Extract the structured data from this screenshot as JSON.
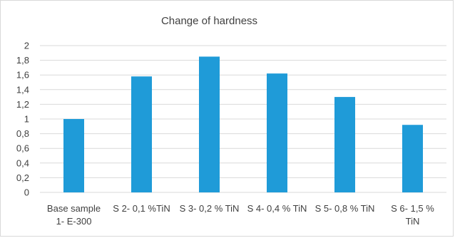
{
  "chart_data": {
    "type": "bar",
    "title": "Change of hardness",
    "xlabel": "",
    "ylabel": "",
    "categories": [
      [
        "Base sample",
        "1- E-300"
      ],
      [
        "S 2- 0,1 %TiN"
      ],
      [
        "S 3- 0,2 % TiN"
      ],
      [
        "S 4- 0,4 % TiN"
      ],
      [
        "S 5- 0,8 % TiN"
      ],
      [
        "S  6- 1,5 %",
        "TiN"
      ]
    ],
    "values": [
      1.0,
      1.58,
      1.85,
      1.62,
      1.3,
      0.92
    ],
    "ylim": [
      0,
      2
    ],
    "yticks": [
      "0",
      "0,2",
      "0,4",
      "0,6",
      "0,8",
      "1",
      "1,2",
      "1,4",
      "1,6",
      "1,8",
      "2"
    ],
    "grid": true,
    "legend": "none",
    "colors": {
      "bar": "#1f9bd8",
      "grid": "#d9d9d9",
      "text": "#404040"
    }
  }
}
